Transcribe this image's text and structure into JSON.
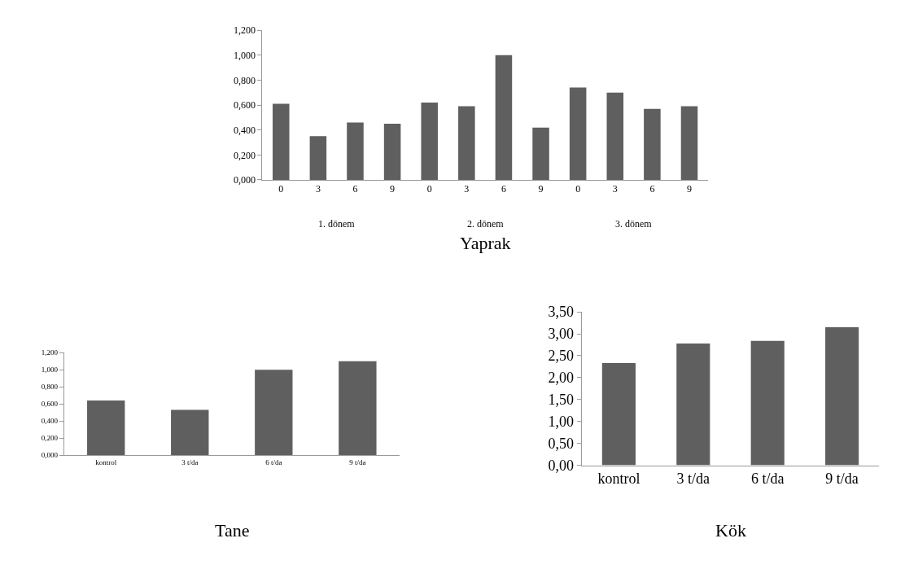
{
  "chart_data": [
    {
      "type": "bar",
      "title": "Yaprak",
      "categories": [
        "0",
        "3",
        "6",
        "9",
        "0",
        "3",
        "6",
        "9",
        "0",
        "3",
        "6",
        "9"
      ],
      "values": [
        0.61,
        0.35,
        0.46,
        0.45,
        0.62,
        0.59,
        1.0,
        0.42,
        0.74,
        0.7,
        0.57,
        0.59
      ],
      "color": "#5f5f5f",
      "annotations": [
        "1. dönem",
        "2. dönem",
        "3. dönem"
      ],
      "ylim": [
        0,
        1.2
      ],
      "yticks": [
        {
          "value": 0,
          "label": "0,000"
        },
        {
          "value": 0.2,
          "label": "0,200"
        },
        {
          "value": 0.4,
          "label": "0,400"
        },
        {
          "value": 0.6,
          "label": "0,600"
        },
        {
          "value": 0.8,
          "label": "0,800"
        },
        {
          "value": 1.0,
          "label": "1,000"
        },
        {
          "value": 1.2,
          "label": "1,200"
        }
      ]
    },
    {
      "type": "bar",
      "title": "Tane",
      "categories": [
        "kontrol",
        "3 t/da",
        "6 t/da",
        "9 t/da"
      ],
      "values": [
        0.64,
        0.53,
        1.0,
        1.1
      ],
      "color": "#5f5f5f",
      "ylim": [
        0,
        1.2
      ],
      "yticks": [
        {
          "value": 0,
          "label": "0,000"
        },
        {
          "value": 0.2,
          "label": "0,200"
        },
        {
          "value": 0.4,
          "label": "0,400"
        },
        {
          "value": 0.6,
          "label": "0,600"
        },
        {
          "value": 0.8,
          "label": "0,800"
        },
        {
          "value": 1.0,
          "label": "1,000"
        },
        {
          "value": 1.2,
          "label": "1,200"
        }
      ]
    },
    {
      "type": "bar",
      "title": "Kök",
      "categories": [
        "kontrol",
        "3 t/da",
        "6 t/da",
        "9 t/da"
      ],
      "values": [
        2.33,
        2.78,
        2.84,
        3.15
      ],
      "color": "#5f5f5f",
      "ylim": [
        0,
        3.5
      ],
      "yticks": [
        {
          "value": 0,
          "label": "0,00"
        },
        {
          "value": 0.5,
          "label": "0,50"
        },
        {
          "value": 1.0,
          "label": "1,00"
        },
        {
          "value": 1.5,
          "label": "1,50"
        },
        {
          "value": 2.0,
          "label": "2,00"
        },
        {
          "value": 2.5,
          "label": "2,50"
        },
        {
          "value": 3.0,
          "label": "3,00"
        },
        {
          "value": 3.5,
          "label": "3,50"
        }
      ]
    }
  ]
}
